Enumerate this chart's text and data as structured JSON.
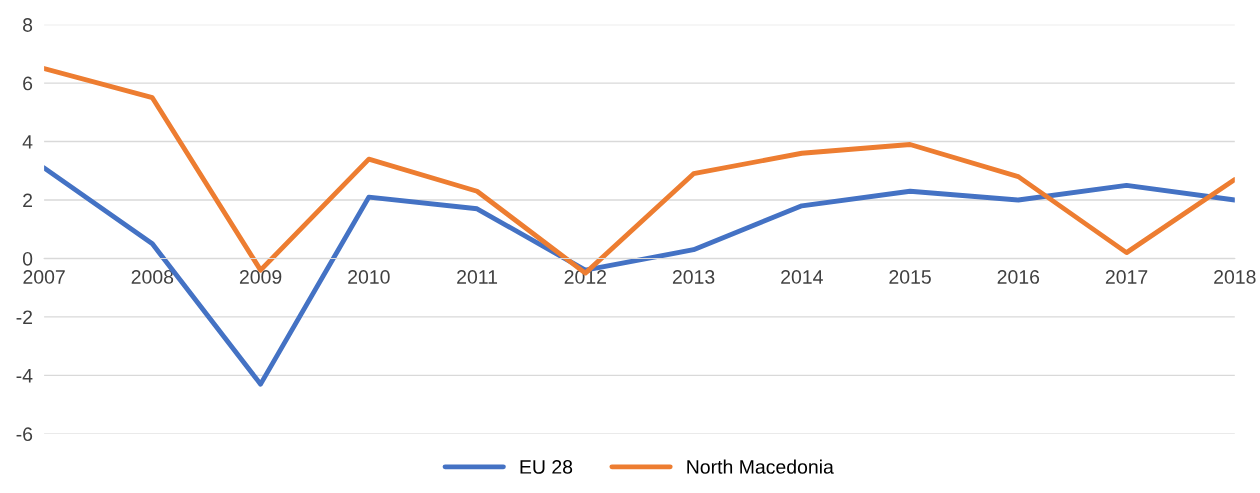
{
  "chart_data": {
    "type": "line",
    "categories": [
      "2007",
      "2008",
      "2009",
      "2010",
      "2011",
      "2012",
      "2013",
      "2014",
      "2015",
      "2016",
      "2017",
      "2018"
    ],
    "series": [
      {
        "name": "EU 28",
        "color": "#4472c4",
        "values": [
          3.1,
          0.5,
          -4.3,
          2.1,
          1.7,
          -0.4,
          0.3,
          1.8,
          2.3,
          2.0,
          2.5,
          2.0
        ]
      },
      {
        "name": "North Macedonia",
        "color": "#ed7d31",
        "values": [
          6.5,
          5.5,
          -0.4,
          3.4,
          2.3,
          -0.5,
          2.9,
          3.6,
          3.9,
          2.8,
          0.2,
          2.7
        ]
      }
    ],
    "ylim": [
      -6,
      8
    ],
    "yticks": [
      -6,
      -4,
      -2,
      0,
      2,
      4,
      6,
      8
    ],
    "grid": "y",
    "legend": "bottom",
    "marker": "none",
    "line_style": "solid"
  }
}
